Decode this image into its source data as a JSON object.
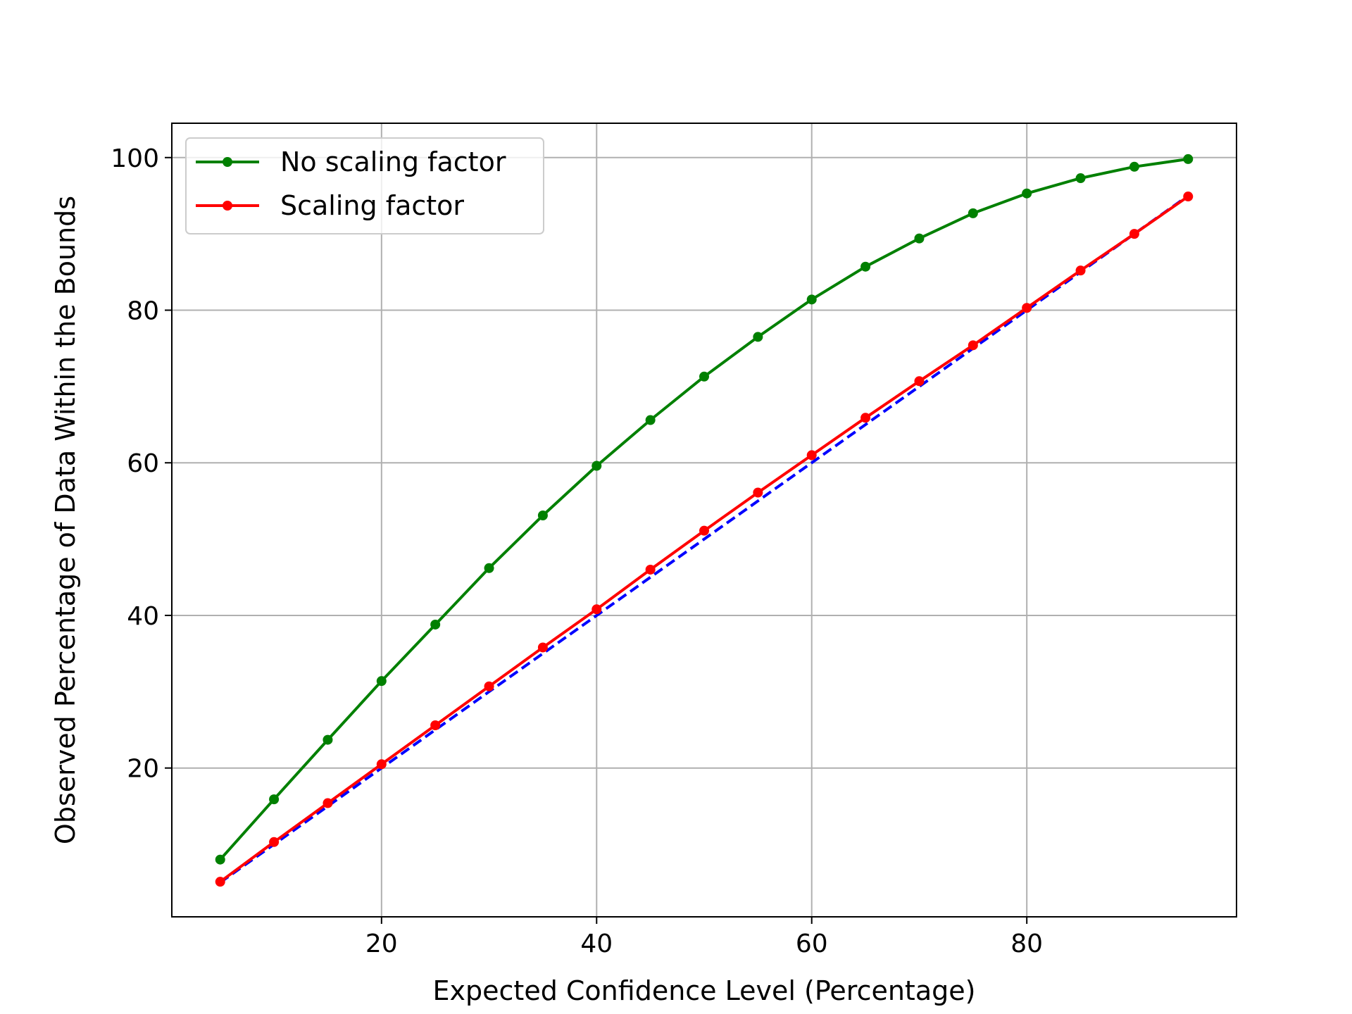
{
  "chart_data": {
    "type": "line",
    "title": "",
    "xlabel": "Expected Confidence Level (Percentage)",
    "ylabel": "Observed Percentage of Data Within the Bounds",
    "xlim": [
      0.5,
      99.5
    ],
    "ylim": [
      0.5,
      104.5
    ],
    "x": [
      5,
      10,
      15,
      20,
      25,
      30,
      35,
      40,
      45,
      50,
      55,
      60,
      65,
      70,
      75,
      80,
      85,
      90,
      95
    ],
    "xticks": [
      "20",
      "40",
      "60",
      "80"
    ],
    "yticks": [
      "20",
      "40",
      "60",
      "80",
      "100"
    ],
    "grid": true,
    "legend_position": "top-left",
    "series": [
      {
        "name": "No scaling factor",
        "color": "#008000",
        "style": "solid-with-markers",
        "values": [
          8.0,
          15.9,
          23.7,
          31.4,
          38.8,
          46.2,
          53.1,
          59.6,
          65.6,
          71.3,
          76.5,
          81.4,
          85.7,
          89.4,
          92.7,
          95.3,
          97.3,
          98.8,
          99.8
        ]
      },
      {
        "name": "Scaling factor",
        "color": "#ff0000",
        "style": "solid-with-markers",
        "values": [
          5.1,
          10.3,
          15.4,
          20.5,
          25.6,
          30.7,
          35.8,
          40.8,
          46.0,
          51.1,
          56.1,
          61.0,
          65.9,
          70.7,
          75.4,
          80.3,
          85.2,
          90.0,
          94.9
        ]
      },
      {
        "color": "#0000ff",
        "style": "dashed",
        "values": [
          5,
          10,
          15,
          20,
          25,
          30,
          35,
          40,
          45,
          50,
          55,
          60,
          65,
          70,
          75,
          80,
          85,
          90,
          95
        ]
      }
    ]
  }
}
